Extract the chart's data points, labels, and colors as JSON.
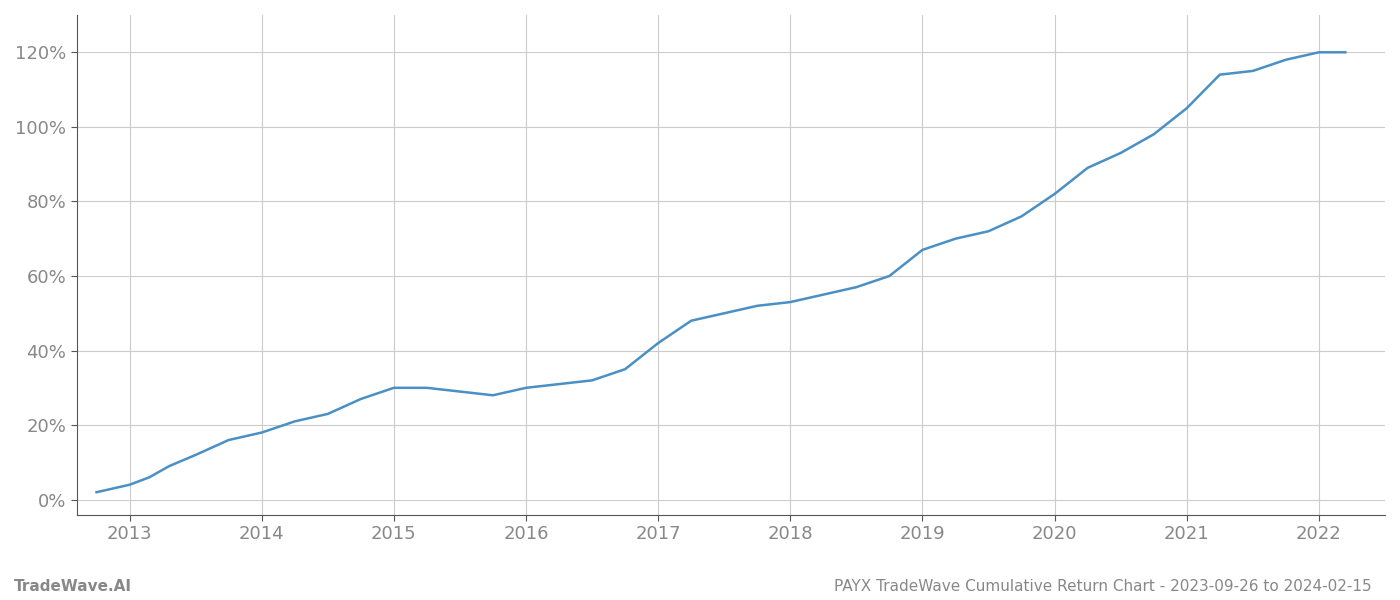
{
  "title": "PAYX TradeWave Cumulative Return Chart - 2023-09-26 to 2024-02-15",
  "watermark": "TradeWave.AI",
  "line_color": "#4a90c4",
  "background_color": "#ffffff",
  "grid_color": "#cccccc",
  "x_years": [
    2013,
    2014,
    2015,
    2016,
    2017,
    2018,
    2019,
    2020,
    2021,
    2022
  ],
  "data_x": [
    2012.75,
    2013.0,
    2013.15,
    2013.3,
    2013.5,
    2013.75,
    2014.0,
    2014.25,
    2014.5,
    2014.75,
    2015.0,
    2015.25,
    2015.5,
    2015.75,
    2016.0,
    2016.25,
    2016.5,
    2016.75,
    2017.0,
    2017.25,
    2017.5,
    2017.75,
    2018.0,
    2018.25,
    2018.5,
    2018.75,
    2019.0,
    2019.25,
    2019.5,
    2019.75,
    2020.0,
    2020.25,
    2020.5,
    2020.75,
    2021.0,
    2021.25,
    2021.5,
    2021.75,
    2022.0,
    2022.2
  ],
  "data_y": [
    0.02,
    0.04,
    0.06,
    0.09,
    0.12,
    0.16,
    0.18,
    0.21,
    0.23,
    0.27,
    0.3,
    0.3,
    0.29,
    0.28,
    0.3,
    0.31,
    0.32,
    0.35,
    0.42,
    0.48,
    0.5,
    0.52,
    0.53,
    0.55,
    0.57,
    0.6,
    0.67,
    0.7,
    0.72,
    0.76,
    0.82,
    0.89,
    0.93,
    0.98,
    1.05,
    1.14,
    1.15,
    1.18,
    1.2,
    1.2
  ],
  "yticks": [
    0.0,
    0.2,
    0.4,
    0.6,
    0.8,
    1.0,
    1.2
  ],
  "ylim": [
    -0.04,
    1.3
  ],
  "xlim": [
    2012.6,
    2022.5
  ],
  "title_fontsize": 11,
  "watermark_fontsize": 11,
  "tick_fontsize": 13,
  "tick_color": "#888888",
  "spine_color": "#555555",
  "line_width": 1.8
}
